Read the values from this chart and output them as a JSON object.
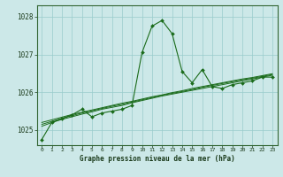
{
  "title": "Graphe pression niveau de la mer (hPa)",
  "bg_color": "#cce8e8",
  "grid_color": "#99cccc",
  "line_color": "#1a6b1a",
  "marker_color": "#1a6b1a",
  "xlim": [
    -0.5,
    23.5
  ],
  "ylim": [
    1024.6,
    1028.3
  ],
  "xticks": [
    0,
    1,
    2,
    3,
    4,
    5,
    6,
    7,
    8,
    9,
    10,
    11,
    12,
    13,
    14,
    15,
    16,
    17,
    18,
    19,
    20,
    21,
    22,
    23
  ],
  "yticks": [
    1025,
    1026,
    1027,
    1028
  ],
  "hours": [
    0,
    1,
    2,
    3,
    4,
    5,
    6,
    7,
    8,
    9,
    10,
    11,
    12,
    13,
    14,
    15,
    16,
    17,
    18,
    19,
    20,
    21,
    22,
    23
  ],
  "pressure_main": [
    1024.75,
    1025.2,
    1025.3,
    1025.4,
    1025.55,
    1025.35,
    1025.45,
    1025.5,
    1025.55,
    1025.65,
    1027.05,
    1027.75,
    1027.9,
    1027.55,
    1026.55,
    1026.25,
    1026.6,
    1026.15,
    1026.1,
    1026.2,
    1026.25,
    1026.3,
    1026.4,
    1026.4
  ],
  "pressure_line2": [
    1025.1,
    1025.2,
    1025.28,
    1025.35,
    1025.42,
    1025.48,
    1025.55,
    1025.6,
    1025.65,
    1025.72,
    1025.78,
    1025.84,
    1025.9,
    1025.95,
    1026.0,
    1026.05,
    1026.1,
    1026.15,
    1026.2,
    1026.25,
    1026.3,
    1026.35,
    1026.4,
    1026.45
  ],
  "pressure_line3": [
    1025.15,
    1025.23,
    1025.31,
    1025.38,
    1025.45,
    1025.51,
    1025.57,
    1025.63,
    1025.68,
    1025.74,
    1025.8,
    1025.86,
    1025.92,
    1025.97,
    1026.02,
    1026.07,
    1026.13,
    1026.18,
    1026.23,
    1026.28,
    1026.33,
    1026.37,
    1026.42,
    1026.47
  ],
  "pressure_line4": [
    1025.2,
    1025.27,
    1025.34,
    1025.41,
    1025.47,
    1025.53,
    1025.59,
    1025.65,
    1025.71,
    1025.76,
    1025.82,
    1025.88,
    1025.93,
    1025.99,
    1026.04,
    1026.1,
    1026.15,
    1026.2,
    1026.25,
    1026.3,
    1026.35,
    1026.39,
    1026.44,
    1026.49
  ],
  "figwidth": 3.2,
  "figheight": 2.0,
  "dpi": 100
}
